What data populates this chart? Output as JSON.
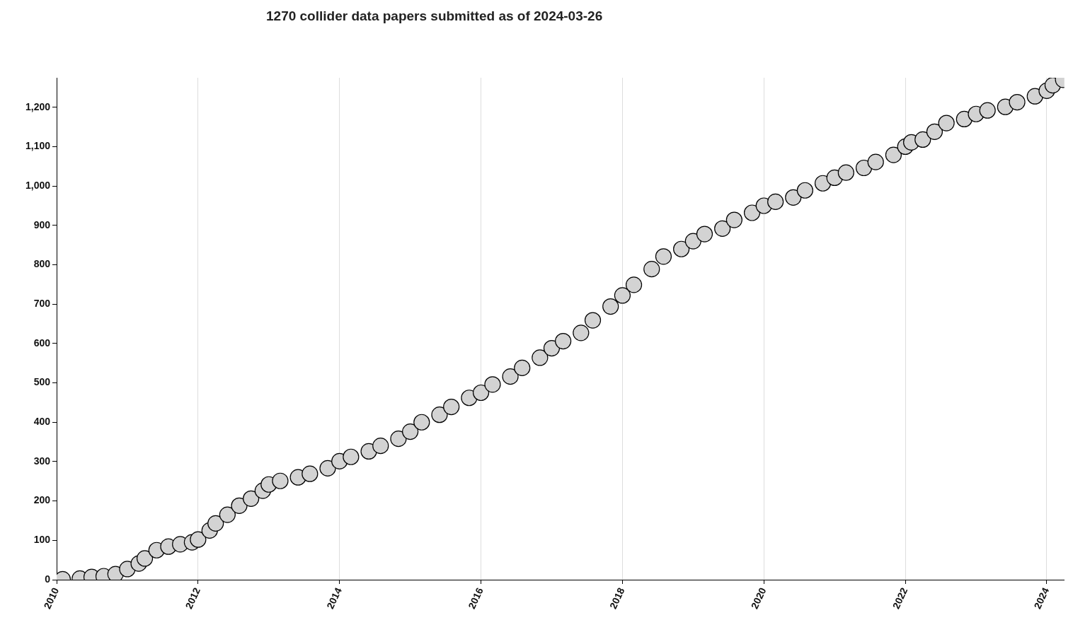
{
  "chart_data": {
    "type": "scatter",
    "title": "1270 collider data papers submitted as of 2024-03-26",
    "x": [
      "2010-02",
      "2010-05",
      "2010-07",
      "2010-09",
      "2010-11",
      "2011-01",
      "2011-03",
      "2011-04",
      "2011-06",
      "2011-08",
      "2011-10",
      "2011-12",
      "2012-01",
      "2012-03",
      "2012-04",
      "2012-06",
      "2012-08",
      "2012-10",
      "2012-12",
      "2013-01",
      "2013-03",
      "2013-06",
      "2013-08",
      "2013-11",
      "2014-01",
      "2014-03",
      "2014-06",
      "2014-08",
      "2014-11",
      "2015-01",
      "2015-03",
      "2015-06",
      "2015-08",
      "2015-11",
      "2016-01",
      "2016-03",
      "2016-06",
      "2016-08",
      "2016-11",
      "2017-01",
      "2017-03",
      "2017-06",
      "2017-08",
      "2017-11",
      "2018-01",
      "2018-03",
      "2018-06",
      "2018-08",
      "2018-11",
      "2019-01",
      "2019-03",
      "2019-06",
      "2019-08",
      "2019-11",
      "2020-01",
      "2020-03",
      "2020-06",
      "2020-08",
      "2020-11",
      "2021-01",
      "2021-03",
      "2021-06",
      "2021-08",
      "2021-11",
      "2022-01",
      "2022-02",
      "2022-04",
      "2022-06",
      "2022-08",
      "2022-11",
      "2023-01",
      "2023-03",
      "2023-06",
      "2023-08",
      "2023-11",
      "2024-01",
      "2024-02",
      "2024-03-26"
    ],
    "series": [
      {
        "color": "#d3d3d3",
        "values": [
          1,
          3,
          7,
          9,
          14,
          27,
          41,
          54,
          75,
          84,
          90,
          95,
          102,
          125,
          143,
          165,
          188,
          206,
          226,
          242,
          251,
          260,
          269,
          283,
          301,
          312,
          326,
          340,
          358,
          376,
          400,
          419,
          439,
          462,
          475,
          496,
          516,
          538,
          564,
          588,
          606,
          627,
          659,
          694,
          722,
          749,
          789,
          821,
          840,
          860,
          878,
          892,
          914,
          932,
          950,
          960,
          971,
          989,
          1007,
          1021,
          1034,
          1046,
          1061,
          1079,
          1100,
          1111,
          1118,
          1138,
          1160,
          1170,
          1183,
          1192,
          1201,
          1213,
          1228,
          1242,
          1256,
          1270
        ]
      }
    ],
    "marker": "circle",
    "grid": "x",
    "legend": false,
    "xlim": [
      "2010",
      "2024-04"
    ],
    "xticks": [
      "2010",
      "2012",
      "2014",
      "2016",
      "2018",
      "2020",
      "2022",
      "2024"
    ],
    "ylim": [
      0,
      1275
    ],
    "yticks": [
      0,
      100,
      200,
      300,
      400,
      500,
      600,
      700,
      800,
      900,
      {
        "value": 1000,
        "label": "1,000"
      },
      {
        "value": 1100,
        "label": "1,100"
      },
      {
        "value": 1200,
        "label": "1,200"
      }
    ]
  }
}
